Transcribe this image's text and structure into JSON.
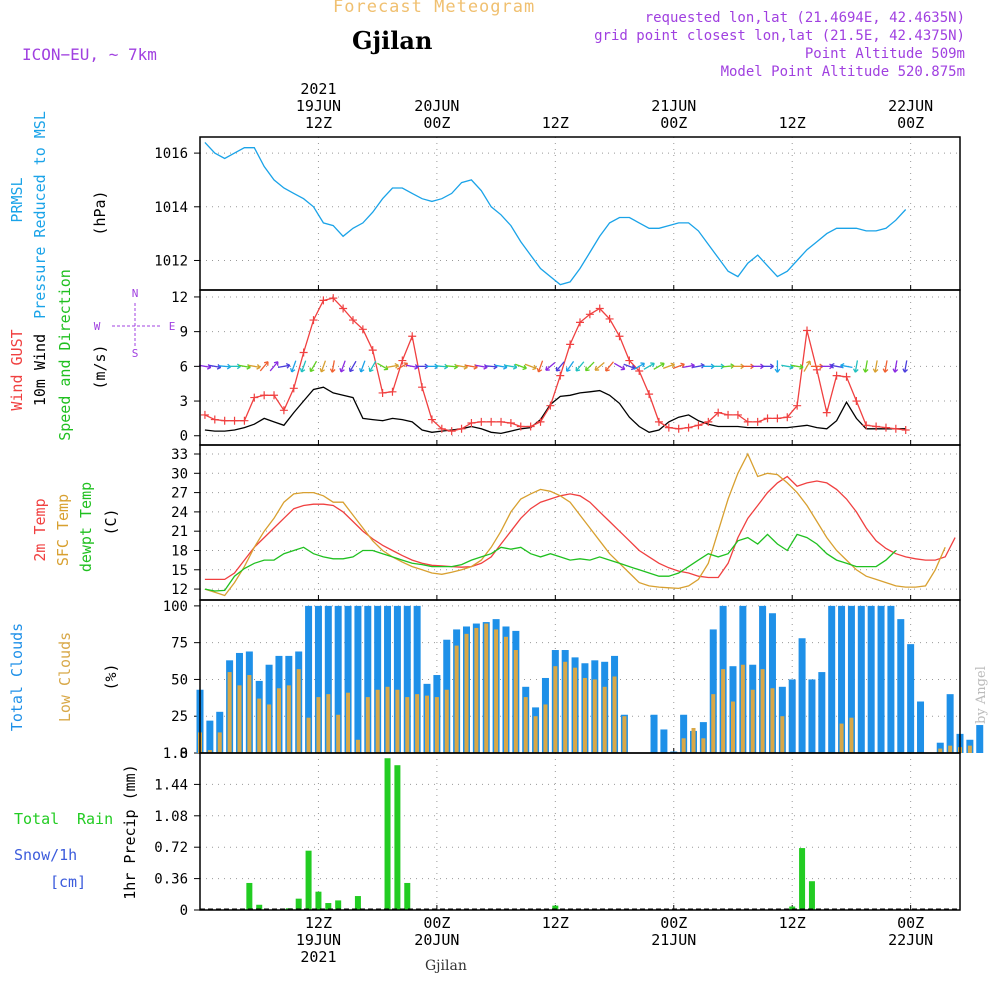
{
  "header": {
    "title": "Forecast Meteogram",
    "location": "Gjilan",
    "model": "ICON−EU, ~ 7km",
    "requested": "requested lon,lat (21.4694E, 42.4635N)",
    "gridpoint": "grid point closest lon,lat (21.5E, 42.4375N)",
    "point_alt": "Point Altitude 509m",
    "model_alt": "Model Point Altitude 520.875m",
    "credit": "by Angel",
    "footer_location": "Gjilan"
  },
  "colors": {
    "pressure": "#1aa3e8",
    "gust": "#f04040",
    "wind": "#000000",
    "t2m": "#f04040",
    "tsfc": "#d8a030",
    "dewpt": "#20c020",
    "total_clouds": "#1e90e8",
    "low_clouds": "#d8a848",
    "rain": "#22cc22",
    "snow": "#3b5bdc",
    "purple": "#a040e0",
    "title": "#f0c070"
  },
  "time_axis": {
    "top": [
      {
        "lines": [
          "2021",
          "19JUN",
          "12Z"
        ],
        "h": 12
      },
      {
        "lines": [
          "20JUN",
          "00Z"
        ],
        "h": 24
      },
      {
        "lines": [
          "12Z"
        ],
        "h": 36
      },
      {
        "lines": [
          "21JUN",
          "00Z"
        ],
        "h": 48
      },
      {
        "lines": [
          "12Z"
        ],
        "h": 60
      },
      {
        "lines": [
          "22JUN",
          "00Z"
        ],
        "h": 72
      }
    ],
    "bottom": [
      {
        "lines": [
          "12Z",
          "19JUN",
          "2021"
        ],
        "h": 12
      },
      {
        "lines": [
          "00Z",
          "20JUN"
        ],
        "h": 24
      },
      {
        "lines": [
          "12Z"
        ],
        "h": 36
      },
      {
        "lines": [
          "00Z",
          "21JUN"
        ],
        "h": 48
      },
      {
        "lines": [
          "12Z"
        ],
        "h": 60
      },
      {
        "lines": [
          "00Z",
          "22JUN"
        ],
        "h": 72
      }
    ]
  },
  "panel_labels": {
    "pressure": [
      "PRMSL",
      "Pressure Reduced to MSL",
      "(hPa)"
    ],
    "wind": [
      "Wind GUST",
      "10m Wind",
      "Speed and Direction",
      "(m/s)"
    ],
    "compass": [
      "N",
      "S",
      "W",
      "E"
    ],
    "temp": [
      "2m Temp",
      "SFC Temp",
      "dewpt Temp",
      "(C)"
    ],
    "clouds": [
      "Total Clouds",
      "Low Clouds",
      "(%)"
    ],
    "precip": [
      "Total",
      "Rain",
      "Snow/1h",
      "[cm]",
      "1hr Precip (mm)"
    ]
  },
  "chart_data": [
    {
      "type": "line",
      "name": "pressure",
      "title": "PRMSL Pressure Reduced to MSL",
      "ylabel": "(hPa)",
      "yticks": [
        "1012",
        "1014",
        "1016"
      ],
      "ylim": [
        1010.9,
        1016.6
      ],
      "xlim": [
        0,
        77
      ],
      "series": [
        {
          "name": "PRMSL",
          "x_start": 0.5,
          "values": [
            1016.4,
            1016.0,
            1015.8,
            1016.0,
            1016.2,
            1016.2,
            1015.5,
            1015.0,
            1014.7,
            1014.5,
            1014.3,
            1014.0,
            1013.4,
            1013.3,
            1012.9,
            1013.2,
            1013.4,
            1013.8,
            1014.3,
            1014.7,
            1014.7,
            1014.5,
            1014.3,
            1014.2,
            1014.3,
            1014.5,
            1014.9,
            1015.0,
            1014.6,
            1014.0,
            1013.7,
            1013.3,
            1012.7,
            1012.2,
            1011.7,
            1011.4,
            1011.1,
            1011.2,
            1011.7,
            1012.3,
            1012.9,
            1013.4,
            1013.6,
            1013.6,
            1013.4,
            1013.2,
            1013.2,
            1013.3,
            1013.4,
            1013.4,
            1013.1,
            1012.6,
            1012.1,
            1011.6,
            1011.4,
            1011.9,
            1012.2,
            1011.8,
            1011.4,
            1011.6,
            1012.0,
            1012.4,
            1012.7,
            1013.0,
            1013.2,
            1013.2,
            1013.2,
            1013.1,
            1013.1,
            1013.2,
            1013.5,
            1013.9
          ]
        }
      ]
    },
    {
      "type": "line",
      "name": "wind",
      "title": "Wind GUST / 10m Wind Speed and Direction",
      "ylabel": "(m/s)",
      "yticks": [
        "0",
        "3",
        "6",
        "9",
        "12"
      ],
      "ylim": [
        -0.8,
        12.6
      ],
      "xlim": [
        0,
        77
      ],
      "series": [
        {
          "name": "Wind GUST",
          "x_start": 0.5,
          "values": [
            1.8,
            1.4,
            1.3,
            1.3,
            1.3,
            3.3,
            3.5,
            3.5,
            2.2,
            4.1,
            7.2,
            10.0,
            11.7,
            11.9,
            11.0,
            10.0,
            9.2,
            7.4,
            3.7,
            3.8,
            6.5,
            8.6,
            4.2,
            1.4,
            0.6,
            0.4,
            0.6,
            1.1,
            1.2,
            1.2,
            1.2,
            1.1,
            0.8,
            0.8,
            1.2,
            2.6,
            5.2,
            7.9,
            9.8,
            10.5,
            11.0,
            10.1,
            8.6,
            6.5,
            5.6,
            3.6,
            1.2,
            0.7,
            0.6,
            0.7,
            0.9,
            1.2,
            2.0,
            1.8,
            1.8,
            1.2,
            1.2,
            1.5,
            1.5,
            1.6,
            2.6,
            9.1,
            5.7,
            2.0,
            5.2,
            5.1,
            3.0,
            0.9,
            0.8,
            0.7,
            0.6,
            0.5
          ]
        },
        {
          "name": "10m Wind",
          "x_start": 0.5,
          "values": [
            0.5,
            0.4,
            0.4,
            0.5,
            0.7,
            1.0,
            1.5,
            1.2,
            0.9,
            2.0,
            3.0,
            4.0,
            4.2,
            3.7,
            3.5,
            3.3,
            1.5,
            1.4,
            1.3,
            1.5,
            1.4,
            1.2,
            0.5,
            0.3,
            0.4,
            0.5,
            0.6,
            0.8,
            0.6,
            0.3,
            0.2,
            0.4,
            0.6,
            0.7,
            1.4,
            2.7,
            3.4,
            3.5,
            3.7,
            3.8,
            3.9,
            3.5,
            2.8,
            1.6,
            0.8,
            0.3,
            0.5,
            1.2,
            1.6,
            1.8,
            1.3,
            1.0,
            0.8,
            0.8,
            0.8,
            0.7,
            0.7,
            0.7,
            0.7,
            0.7,
            0.8,
            0.9,
            0.7,
            0.6,
            1.3,
            2.9,
            1.5,
            0.6,
            0.6,
            0.6,
            0.6,
            0.6
          ]
        }
      ],
      "direction_barbs": {
        "x_start": 0.5,
        "y_value": 6,
        "angles_deg_from_north": [
          100,
          100,
          95,
          90,
          100,
          100,
          40,
          40,
          80,
          200,
          200,
          210,
          200,
          190,
          200,
          210,
          200,
          210,
          120,
          80,
          60,
          100,
          90,
          90,
          95,
          95,
          100,
          100,
          100,
          95,
          100,
          100,
          110,
          110,
          200,
          230,
          220,
          215,
          220,
          225,
          230,
          220,
          120,
          110,
          60,
          60,
          60,
          70,
          70,
          80,
          80,
          90,
          90,
          85,
          90,
          90,
          90,
          90,
          180,
          100,
          100,
          30,
          90,
          90,
          280,
          280,
          190,
          190,
          190,
          190,
          190,
          190
        ]
      }
    },
    {
      "type": "line",
      "name": "temperature",
      "title": "2m Temp / SFC Temp / dewpt Temp",
      "ylabel": "(C)",
      "yticks": [
        "12",
        "15",
        "18",
        "21",
        "24",
        "27",
        "30",
        "33"
      ],
      "ylim": [
        10.3,
        34.4
      ],
      "xlim": [
        0,
        77
      ],
      "series": [
        {
          "name": "2m Temp",
          "x_start": 0.5,
          "values": [
            13.5,
            13.5,
            13.5,
            14.5,
            16.5,
            18.5,
            20.0,
            21.5,
            23.0,
            24.5,
            25.0,
            25.2,
            25.2,
            25.0,
            24.0,
            22.5,
            21.0,
            19.8,
            18.8,
            18.0,
            17.2,
            16.5,
            16.0,
            15.7,
            15.6,
            15.5,
            15.4,
            15.5,
            16.0,
            17.0,
            19.0,
            21.0,
            23.0,
            24.5,
            25.5,
            26.0,
            26.5,
            26.8,
            26.5,
            25.5,
            24.0,
            22.5,
            21.0,
            19.5,
            18.0,
            17.0,
            16.0,
            15.3,
            14.8,
            14.5,
            14.0,
            13.8,
            13.8,
            16.0,
            20.0,
            23.0,
            25.0,
            27.0,
            28.5,
            29.5,
            28.0,
            28.5,
            28.8,
            28.5,
            27.5,
            26.0,
            24.0,
            21.5,
            19.5,
            18.3,
            17.5,
            17.0,
            16.7,
            16.5,
            16.5,
            17.0,
            20.0
          ]
        },
        {
          "name": "SFC Temp",
          "x_start": 0.5,
          "values": [
            12.0,
            11.5,
            11.0,
            13.0,
            15.5,
            18.5,
            21.0,
            23.0,
            25.5,
            26.8,
            27.0,
            27.0,
            26.5,
            25.5,
            25.5,
            23.5,
            21.5,
            19.5,
            18.0,
            17.0,
            16.2,
            15.5,
            15.0,
            14.5,
            14.3,
            14.6,
            15.0,
            15.5,
            16.5,
            18.5,
            21.0,
            24.0,
            26.0,
            26.8,
            27.5,
            27.2,
            26.5,
            25.5,
            23.5,
            21.5,
            19.5,
            17.5,
            16.0,
            14.5,
            13.0,
            12.5,
            12.3,
            12.2,
            12.1,
            12.5,
            13.5,
            16.0,
            21.0,
            26.0,
            30.0,
            33.0,
            29.5,
            30.0,
            29.8,
            28.5,
            27.0,
            25.0,
            22.5,
            20.0,
            18.0,
            16.5,
            15.0,
            14.0,
            13.5,
            13.0,
            12.5,
            12.3,
            12.3,
            12.5,
            15.0,
            18.5
          ]
        },
        {
          "name": "dewpt Temp",
          "x_start": 0.5,
          "values": [
            12.0,
            11.7,
            11.8,
            14.0,
            15.2,
            16.0,
            16.5,
            16.5,
            17.5,
            18.0,
            18.5,
            17.5,
            17.0,
            16.7,
            16.7,
            17.0,
            18.0,
            18.0,
            17.5,
            17.0,
            16.5,
            16.0,
            15.8,
            15.5,
            15.5,
            15.5,
            15.8,
            16.5,
            17.0,
            17.5,
            18.5,
            18.2,
            18.5,
            17.5,
            17.0,
            17.5,
            17.0,
            16.5,
            16.7,
            16.5,
            17.0,
            16.5,
            16.0,
            15.5,
            15.0,
            14.5,
            14.0,
            14.0,
            14.5,
            15.5,
            16.5,
            17.5,
            17.0,
            17.5,
            19.5,
            20.0,
            19.0,
            20.5,
            19.0,
            18.0,
            20.5,
            20.0,
            19.0,
            17.5,
            16.5,
            16.0,
            15.5,
            15.5,
            15.5,
            16.5,
            18.0
          ]
        }
      ]
    },
    {
      "type": "bar",
      "name": "clouds",
      "title": "Total Clouds / Low Clouds",
      "ylabel": "(%)",
      "yticks": [
        "0",
        "25",
        "50",
        "75",
        "100"
      ],
      "ylim": [
        0,
        104
      ],
      "xlim": [
        0,
        77
      ],
      "series": [
        {
          "name": "Total Clouds",
          "x_start": 0,
          "values": [
            43,
            22,
            28,
            63,
            68,
            69,
            49,
            60,
            66,
            66,
            69,
            100,
            100,
            100,
            100,
            100,
            100,
            100,
            100,
            100,
            100,
            100,
            100,
            47,
            53,
            77,
            84,
            86,
            88,
            89,
            91,
            86,
            83,
            45,
            31,
            51,
            70,
            70,
            65,
            61,
            63,
            62,
            66,
            26,
            0,
            0,
            26,
            16,
            1,
            26,
            15,
            21,
            84,
            100,
            59,
            100,
            60,
            100,
            95,
            45,
            50,
            78,
            50,
            55,
            100,
            100,
            100,
            100,
            100,
            100,
            100,
            91,
            74,
            35,
            0,
            7,
            40,
            13,
            9,
            19
          ]
        },
        {
          "name": "Low Clouds",
          "x_start": 0,
          "values": [
            14,
            2,
            14,
            55,
            46,
            53,
            37,
            33,
            44,
            46,
            57,
            24,
            38,
            40,
            26,
            41,
            9,
            38,
            43,
            45,
            43,
            38,
            40,
            39,
            38,
            43,
            73,
            81,
            85,
            88,
            84,
            79,
            70,
            38,
            25,
            33,
            59,
            62,
            58,
            51,
            50,
            45,
            52,
            25,
            0,
            0,
            0,
            0,
            0,
            10,
            17,
            10,
            40,
            57,
            35,
            60,
            43,
            57,
            44,
            25,
            0,
            0,
            0,
            0,
            0,
            20,
            24,
            0,
            0,
            0,
            0,
            0,
            0,
            0,
            0,
            3,
            5,
            4,
            5,
            0
          ]
        }
      ]
    },
    {
      "type": "bar",
      "name": "precipitation",
      "title": "Total Rain / Snow 1h",
      "ylabel": "1hr Precip (mm)",
      "yticks": [
        "0",
        "0.36",
        "0.72",
        "1.08",
        "1.44",
        "1.8"
      ],
      "ylim": [
        0,
        1.8
      ],
      "xlim": [
        0,
        77
      ],
      "series": [
        {
          "name": "Total Rain",
          "x_start": 0,
          "values": [
            0,
            0,
            0,
            0,
            0,
            0.31,
            0.06,
            0,
            0,
            0.02,
            0.13,
            0.68,
            0.21,
            0.08,
            0.11,
            0,
            0.16,
            0,
            0,
            1.74,
            1.66,
            0.31,
            0,
            0,
            0,
            0,
            0,
            0,
            0,
            0,
            0,
            0,
            0,
            0,
            0,
            0,
            0.05,
            0,
            0,
            0,
            0,
            0,
            0,
            0,
            0,
            0,
            0,
            0,
            0,
            0,
            0,
            0,
            0,
            0,
            0,
            0,
            0,
            0,
            0,
            0,
            0.04,
            0.71,
            0.33,
            0,
            0,
            0,
            0,
            0,
            0,
            0,
            0,
            0,
            0,
            0,
            0,
            0,
            0,
            0,
            0
          ]
        },
        {
          "name": "Snow/1h",
          "x_start": 0,
          "values": [
            0,
            0,
            0,
            0,
            0,
            0,
            0,
            0,
            0,
            0,
            0,
            0,
            0,
            0,
            0,
            0,
            0,
            0,
            0,
            0,
            0,
            0,
            0,
            0,
            0,
            0,
            0,
            0,
            0,
            0,
            0,
            0,
            0,
            0,
            0,
            0,
            0,
            0,
            0,
            0,
            0,
            0,
            0,
            0,
            0,
            0,
            0,
            0,
            0,
            0,
            0,
            0,
            0,
            0,
            0,
            0,
            0,
            0,
            0,
            0,
            0,
            0,
            0,
            0,
            0,
            0,
            0,
            0,
            0,
            0,
            0,
            0,
            0,
            0,
            0,
            0,
            0,
            0
          ]
        }
      ]
    }
  ]
}
